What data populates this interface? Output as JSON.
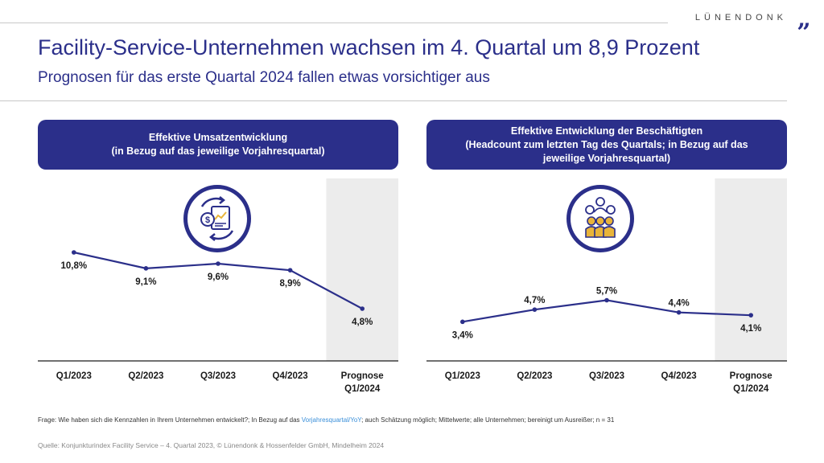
{
  "brand": "LÜNENDONK",
  "brand_mark": "„",
  "title": "Facility-Service-Unternehmen wachsen im 4. Quartal um 8,9 Prozent",
  "subtitle": "Prognosen für das erste Quartal 2024 fallen etwas vorsichtiger aus",
  "colors": {
    "accent": "#2b2f8a",
    "forecast_bg": "#ececec",
    "icon_yellow": "#e8b43a",
    "link": "#3a8fd9"
  },
  "left_panel": {
    "header_line1": "Effektive Umsatzentwicklung",
    "header_line2": "(in Bezug auf das jeweilige Vorjahresquartal)",
    "icon": "revenue-document-icon"
  },
  "right_panel": {
    "header_line1": "Effektive Entwicklung der Beschäftigten",
    "header_line2": "(Headcount zum letzten Tag des Quartals; in Bezug auf das",
    "header_line3": "jeweilige Vorjahresquartal)",
    "icon": "employees-group-icon"
  },
  "chart_data": [
    {
      "type": "line",
      "title": "Effektive Umsatzentwicklung",
      "categories": [
        "Q1/2023",
        "Q2/2023",
        "Q3/2023",
        "Q4/2023",
        "Prognose Q1/2024"
      ],
      "category_lines": [
        [
          "Q1/2023"
        ],
        [
          "Q2/2023"
        ],
        [
          "Q3/2023"
        ],
        [
          "Q4/2023"
        ],
        [
          "Prognose",
          "Q1/2024"
        ]
      ],
      "values": [
        10.8,
        9.1,
        9.6,
        8.9,
        4.8
      ],
      "labels": [
        "10,8%",
        "9,1%",
        "9,6%",
        "8,9%",
        "4,8%"
      ],
      "label_position": [
        "below",
        "below",
        "below",
        "below",
        "below"
      ],
      "ylim": [
        0,
        12
      ],
      "forecast_index": 4
    },
    {
      "type": "line",
      "title": "Effektive Entwicklung der Beschäftigten",
      "categories": [
        "Q1/2023",
        "Q2/2023",
        "Q3/2023",
        "Q4/2023",
        "Prognose Q1/2024"
      ],
      "category_lines": [
        [
          "Q1/2023"
        ],
        [
          "Q2/2023"
        ],
        [
          "Q3/2023"
        ],
        [
          "Q4/2023"
        ],
        [
          "Prognose",
          "Q1/2024"
        ]
      ],
      "values": [
        3.4,
        4.7,
        5.7,
        4.4,
        4.1
      ],
      "labels": [
        "3,4%",
        "4,7%",
        "5,7%",
        "4,4%",
        "4,1%"
      ],
      "label_position": [
        "below",
        "above",
        "above",
        "above",
        "below"
      ],
      "ylim": [
        0,
        12
      ],
      "forecast_index": 4
    }
  ],
  "question": {
    "before": "Frage: Wie haben sich die Kennzahlen in Ihrem Unternehmen entwickelt?; In Bezug auf das ",
    "link": "Vorjahresquartal/YoY",
    "after": "; auch Schätzung möglich; Mittelwerte; alle Unternehmen; bereinigt um Ausreißer; n = 31"
  },
  "source": "Quelle: Konjunkturindex Facility Service – 4. Quartal 2023, © Lünendonk & Hossenfelder GmbH, Mindelheim 2024"
}
